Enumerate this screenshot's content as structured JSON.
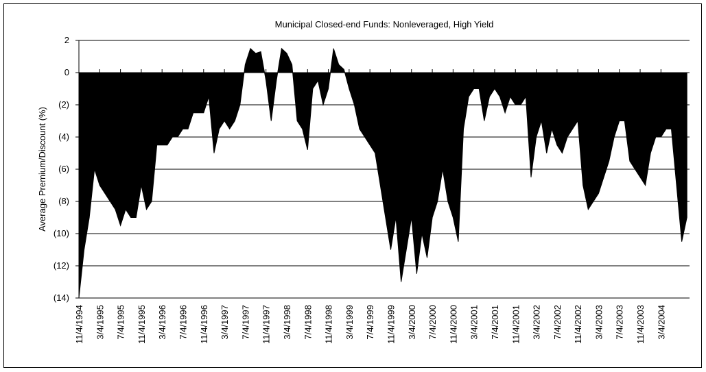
{
  "chart_data": {
    "type": "area",
    "title": "Municipal Closed-end Funds: Nonleveraged, High Yield",
    "y_label": "Average Premium/Discount (%)",
    "color": "#000000",
    "grid": true,
    "x": [
      "11/4/1994",
      null,
      null,
      null,
      "3/4/1995",
      null,
      null,
      null,
      "7/4/1995",
      null,
      null,
      null,
      "11/4/1995",
      null,
      null,
      null,
      "3/4/1996",
      null,
      null,
      null,
      "7/4/1996",
      null,
      null,
      null,
      "11/4/1996",
      null,
      null,
      null,
      "3/4/1997",
      null,
      null,
      null,
      "7/4/1997",
      null,
      null,
      null,
      "11/4/1997",
      null,
      null,
      null,
      "3/4/1998",
      null,
      null,
      null,
      "7/4/1998",
      null,
      null,
      null,
      "11/4/1998",
      null,
      null,
      null,
      "3/4/1999",
      null,
      null,
      null,
      "7/4/1999",
      null,
      null,
      null,
      "11/4/1999",
      null,
      null,
      null,
      "3/4/2000",
      null,
      null,
      null,
      "7/4/2000",
      null,
      null,
      null,
      "11/4/2000",
      null,
      null,
      null,
      "3/4/2001",
      null,
      null,
      null,
      "7/4/2001",
      null,
      null,
      null,
      "11/4/2001",
      null,
      null,
      null,
      "3/4/2002",
      null,
      null,
      null,
      "7/4/2002",
      null,
      null,
      null,
      "11/4/2002",
      null,
      null,
      null,
      "3/4/2003",
      null,
      null,
      null,
      "7/4/2003",
      null,
      null,
      null,
      "11/4/2003",
      null,
      null,
      null,
      "3/4/2004",
      null,
      null,
      null,
      null,
      null
    ],
    "values": [
      -14,
      -11,
      -9,
      -6,
      -7,
      -7.5,
      -8,
      -8.5,
      -9.5,
      -8.5,
      -9,
      -9,
      -7,
      -8.5,
      -8,
      -4.5,
      -4.5,
      -4.5,
      -4,
      -4,
      -3.5,
      -3.5,
      -2.5,
      -2.5,
      -2.5,
      -1.5,
      -5,
      -3.5,
      -3,
      -3.5,
      -3,
      -2,
      0.5,
      1.5,
      1.2,
      1.3,
      -0.5,
      -3,
      -0.5,
      1.5,
      1.2,
      0.5,
      -3,
      -3.5,
      -4.8,
      -1,
      -0.5,
      -2,
      -1,
      1.5,
      0.5,
      0.2,
      -1,
      -2,
      -3.5,
      -4,
      -4.5,
      -5,
      -7,
      -9,
      -11,
      -9,
      -13,
      -11,
      -9,
      -12.5,
      -10,
      -11.5,
      -9,
      -8,
      -6,
      -8,
      -9,
      -10.5,
      -3.5,
      -1.5,
      -1,
      -1,
      -3,
      -1.5,
      -1,
      -1.5,
      -2.5,
      -1.5,
      -2,
      -2,
      -1.5,
      -6.5,
      -4,
      -3,
      -5,
      -3.5,
      -4.5,
      -5,
      -4,
      -3.5,
      -3,
      -7,
      -8.5,
      -8,
      -7.5,
      -6.5,
      -5.5,
      -4,
      -3,
      -3,
      -5.5,
      -6,
      -6.5,
      -7,
      -5,
      -4,
      -4,
      -3.5,
      -3.5,
      -7,
      -10.5,
      -9
    ],
    "ylim": [
      -14,
      2
    ],
    "yticks": [
      2,
      0,
      {
        "value": -2,
        "label": "(2)"
      },
      {
        "value": -4,
        "label": "(4)"
      },
      {
        "value": -6,
        "label": "(6)"
      },
      {
        "value": -8,
        "label": "(8)"
      },
      {
        "value": -10,
        "label": "(10)"
      },
      {
        "value": -12,
        "label": "(12)"
      },
      {
        "value": -14,
        "label": "(14)"
      }
    ]
  }
}
